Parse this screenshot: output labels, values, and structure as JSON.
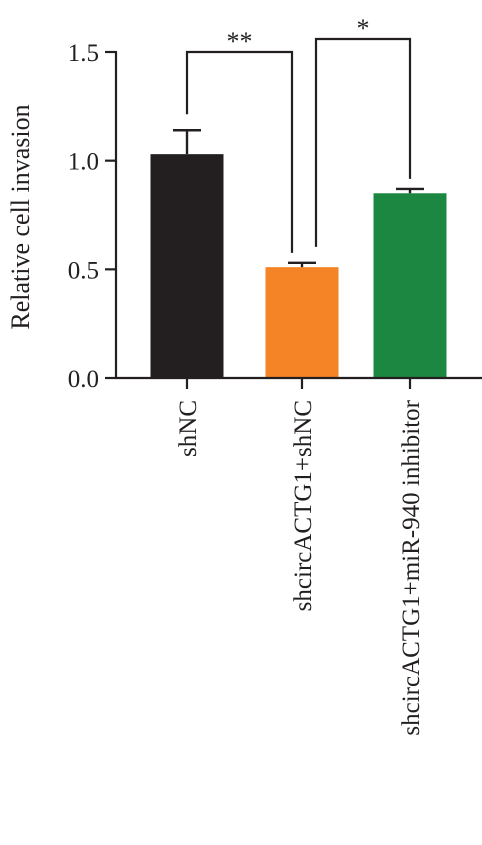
{
  "chart_data": {
    "type": "bar",
    "ylabel": "Relative cell invasion",
    "xlabel": "",
    "title": "",
    "ylim": [
      0,
      1.5
    ],
    "yticks": [
      0.0,
      0.5,
      1.0,
      1.5
    ],
    "ytick_labels": [
      "0.0",
      "0.5",
      "1.0",
      "1.5"
    ],
    "categories": [
      "shNC",
      "shcircACTG1+shNC",
      "shcircACTG1+miR-940 inhibitor"
    ],
    "values": [
      1.03,
      0.51,
      0.85
    ],
    "errors": [
      0.11,
      0.02,
      0.02
    ],
    "colors": [
      "#231f20",
      "#f58426",
      "#1c8740"
    ],
    "significance": [
      {
        "from": 0,
        "to": 1,
        "label": "**"
      },
      {
        "from": 1,
        "to": 2,
        "label": "*"
      }
    ],
    "grid": false,
    "legend": "none"
  }
}
